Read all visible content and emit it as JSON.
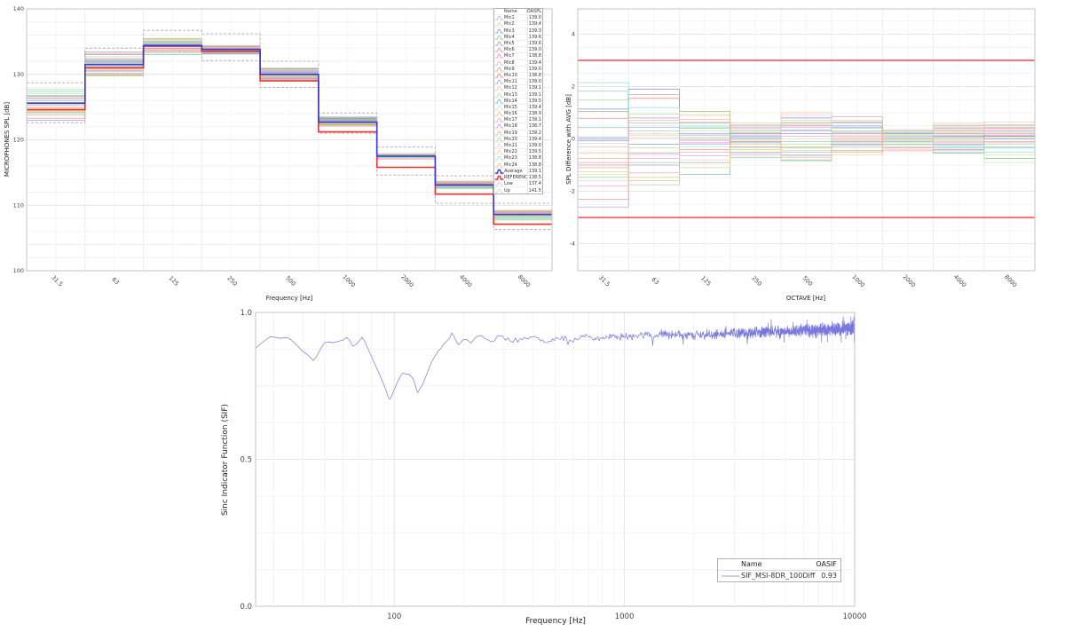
{
  "page": {
    "background": "#ffffff"
  },
  "chart_data": [
    {
      "id": "mic_spl",
      "type": "step",
      "ylabel": "MICROPHONES SPL [dB]",
      "xlabel": "Frequency [Hz]",
      "ylim": [
        100,
        140
      ],
      "yticks": [
        "100",
        "110",
        "120",
        "130",
        "140"
      ],
      "categories": [
        "31.5",
        "63",
        "125",
        "250",
        "500",
        "1000",
        "2000",
        "4000",
        "8000"
      ],
      "legend": {
        "headers": [
          "Name",
          "OASPL"
        ]
      },
      "average": {
        "name": "Average",
        "oaspl": "139.1",
        "color": "#3a3ad0",
        "values": [
          125.6,
          131.5,
          134.4,
          133.8,
          130.0,
          122.7,
          117.5,
          113.1,
          108.6
        ]
      },
      "reference": {
        "name": "REFERENCE",
        "oaspl": "138.5",
        "color": "#e83030",
        "values": [
          124.6,
          131.0,
          134.3,
          133.5,
          129.0,
          121.2,
          115.8,
          111.7,
          107.1
        ]
      },
      "low": {
        "name": "Low",
        "oaspl": "137.4",
        "color": "#b4b4b4",
        "values": [
          122.6,
          129.9,
          133.3,
          132.1,
          128.0,
          121.0,
          114.6,
          110.3,
          106.3
        ]
      },
      "up": {
        "name": "Up",
        "oaspl": "141.5",
        "color": "#b4b4b4",
        "values": [
          128.7,
          134.0,
          136.7,
          136.2,
          132.0,
          124.1,
          118.9,
          114.5,
          110.3
        ]
      },
      "mics": [
        {
          "name": "Mic1",
          "oaspl": "139.0",
          "color": "#aab4e8",
          "diff": [
            0.07,
            0.3,
            -0.2,
            0.1,
            -0.5,
            0.85,
            -0.05,
            0.15,
            0.55
          ]
        },
        {
          "name": "Mic2",
          "oaspl": "139.4",
          "color": "#b8e0b0",
          "diff": [
            -0.18,
            0.95,
            0.3,
            -0.05,
            -0.2,
            0.15,
            -0.15,
            -0.1,
            -0.2
          ]
        },
        {
          "name": "Mic3",
          "oaspl": "139.3",
          "color": "#7c8fdd",
          "diff": [
            1.14,
            1.9,
            0.6,
            0.2,
            0.8,
            0.45,
            0.25,
            -0.4,
            0.2
          ]
        },
        {
          "name": "Mic4",
          "oaspl": "139.6",
          "color": "#7fc97f",
          "diff": [
            1.82,
            0.6,
            0.4,
            -0.5,
            -0.35,
            0.3,
            0.1,
            0.2,
            -0.75
          ]
        },
        {
          "name": "Mic5",
          "oaspl": "139.6",
          "color": "#8899dd",
          "diff": [
            -0.07,
            0.45,
            -0.05,
            0.05,
            0.2,
            -0.2,
            0.15,
            0.05,
            0.15
          ]
        },
        {
          "name": "Mic6",
          "oaspl": "139.0",
          "color": "#e08888",
          "diff": [
            -2.3,
            1.7,
            -0.4,
            -0.1,
            0.5,
            0.65,
            -0.2,
            0.4,
            0.4
          ]
        },
        {
          "name": "Mic7",
          "oaspl": "138.8",
          "color": "#e888c8",
          "diff": [
            -1.0,
            -1.3,
            -0.15,
            -0.6,
            0.45,
            0.25,
            0.2,
            -0.35,
            0.1
          ]
        },
        {
          "name": "Mic8",
          "oaspl": "139.4",
          "color": "#f0aab8",
          "diff": [
            -0.3,
            -0.75,
            -0.5,
            0.4,
            0.1,
            0.05,
            0.35,
            0.25,
            0.35
          ]
        },
        {
          "name": "Mic9",
          "oaspl": "139.0",
          "color": "#aaaaaa",
          "diff": [
            1.05,
            0.8,
            -0.9,
            0.5,
            0.3,
            -0.1,
            0.2,
            0.5,
            0.45
          ]
        },
        {
          "name": "Mic10",
          "oaspl": "138.8",
          "color": "#dd7766",
          "diff": [
            0.79,
            1.55,
            1.05,
            -0.3,
            0.6,
            -0.45,
            -0.35,
            0.1,
            0.1
          ]
        },
        {
          "name": "Mic11",
          "oaspl": "139.0",
          "color": "#8fa3e0",
          "diff": [
            0.0,
            -0.55,
            0.15,
            -0.15,
            0.35,
            0.5,
            0.05,
            -0.2,
            0.0
          ]
        },
        {
          "name": "Mic12",
          "oaspl": "139.1",
          "color": "#f0c090",
          "diff": [
            -0.55,
            0.15,
            0.75,
            0.55,
            1.0,
            -0.6,
            -0.3,
            0.6,
            0.65
          ]
        },
        {
          "name": "Mic13",
          "oaspl": "139.1",
          "color": "#a8d8a0",
          "diff": [
            1.5,
            -1.75,
            1.05,
            0.6,
            -0.65,
            -0.15,
            0.35,
            -0.45,
            0.05
          ]
        },
        {
          "name": "Mic14",
          "oaspl": "139.5",
          "color": "#66b8b8",
          "diff": [
            0.43,
            -0.2,
            -1.35,
            -0.7,
            -0.8,
            0.6,
            0.3,
            -0.55,
            -0.35
          ]
        },
        {
          "name": "Mic15",
          "oaspl": "139.4",
          "color": "#c4e8c4",
          "diff": [
            -1.35,
            0.2,
            -0.3,
            -0.35,
            0.65,
            -0.35,
            -0.25,
            0.0,
            -0.9
          ]
        },
        {
          "name": "Mic16",
          "oaspl": "138.9",
          "color": "#d8c080",
          "diff": [
            -0.75,
            -0.35,
            0.9,
            -0.4,
            0.7,
            0.7,
            0.0,
            0.45,
            0.5
          ]
        },
        {
          "name": "Mic17",
          "oaspl": "139.1",
          "color": "#f09ab8",
          "diff": [
            -0.9,
            0.7,
            -0.65,
            0.15,
            -0.7,
            -0.05,
            -0.45,
            -0.15,
            -0.1
          ]
        },
        {
          "name": "Mic18",
          "oaspl": "138.7",
          "color": "#b89ad8",
          "diff": [
            -2.6,
            -1.0,
            0.2,
            0.45,
            -0.6,
            0.2,
            -0.1,
            0.35,
            0.3
          ]
        },
        {
          "name": "Mic19",
          "oaspl": "139.2",
          "color": "#c0c070",
          "diff": [
            -1.1,
            -1.6,
            0.05,
            0.25,
            -0.3,
            -0.5,
            -0.1,
            0.3,
            0.25
          ]
        },
        {
          "name": "Mic20",
          "oaspl": "139.4",
          "color": "#98d898",
          "diff": [
            -1.45,
            -0.9,
            0.45,
            0.0,
            -0.1,
            0.4,
            0.15,
            -0.25,
            -0.3
          ]
        },
        {
          "name": "Mic21",
          "oaspl": "139.0",
          "color": "#f0c8d8",
          "diff": [
            -1.6,
            0.05,
            -0.8,
            -0.55,
            0.9,
            0.0,
            -0.4,
            0.55,
            0.2
          ]
        },
        {
          "name": "Mic22",
          "oaspl": "139.5",
          "color": "#d8d888",
          "diff": [
            -1.25,
            -1.45,
            -1.1,
            -0.2,
            -0.85,
            0.1,
            0.1,
            -0.5,
            -0.6
          ]
        },
        {
          "name": "Mic23",
          "oaspl": "138.8",
          "color": "#88e0e0",
          "diff": [
            2.15,
            1.2,
            0.5,
            0.3,
            0.55,
            -0.3,
            -0.2,
            -0.3,
            -0.5
          ]
        },
        {
          "name": "Mic24",
          "oaspl": "138.8",
          "color": "#f0b0a0",
          "diff": [
            -1.8,
            -0.6,
            0.65,
            0.35,
            -0.45,
            -0.25,
            0.3,
            -0.05,
            -0.15
          ]
        }
      ]
    },
    {
      "id": "spl_diff",
      "type": "step",
      "ylabel": "SPL Difference with AVG [dB]",
      "xlabel": "OCTAVE [Hz]",
      "ylim": [
        -5.05,
        4.95
      ],
      "yticks": [
        "-4",
        "-2",
        "0",
        "2",
        "4"
      ],
      "categories": [
        "31.5",
        "63",
        "125",
        "250",
        "500",
        "1000",
        "2000",
        "4000",
        "8000"
      ],
      "series_source": "mic diff relative to Average (from mic_spl chart)",
      "limits": {
        "upper": 3,
        "lower": -3,
        "color": "#f04848"
      }
    },
    {
      "id": "sif",
      "type": "line",
      "xscale": "log",
      "ylabel": "Sinc Indicator Function (SIF)",
      "xlabel": "Frequency [Hz]",
      "ylim": [
        0,
        1
      ],
      "yticks": [
        "0.0",
        "0.5",
        "1.0"
      ],
      "xticks": [
        "100",
        "1000",
        "10000"
      ],
      "xlim": [
        25,
        10000
      ],
      "legend": {
        "headers": [
          "Name",
          "OASIF"
        ]
      },
      "series": [
        {
          "name": "SIF_MSI-8DR_100Diff",
          "oasif": "0.93",
          "color": "#7878dd",
          "noise": {
            "from_hz": 200,
            "base": 0.006,
            "slope": 0.022
          },
          "points": [
            [
              25,
              0.878
            ],
            [
              26,
              0.89
            ],
            [
              27.5,
              0.905
            ],
            [
              29,
              0.918
            ],
            [
              30.5,
              0.915
            ],
            [
              32,
              0.912
            ],
            [
              34,
              0.915
            ],
            [
              35.5,
              0.908
            ],
            [
              37,
              0.895
            ],
            [
              38.5,
              0.882
            ],
            [
              40,
              0.868
            ],
            [
              42,
              0.856
            ],
            [
              44.5,
              0.837
            ],
            [
              46,
              0.85
            ],
            [
              48,
              0.878
            ],
            [
              50,
              0.898
            ],
            [
              52,
              0.9
            ],
            [
              54,
              0.897
            ],
            [
              56,
              0.9
            ],
            [
              58,
              0.903
            ],
            [
              60,
              0.906
            ],
            [
              62,
              0.915
            ],
            [
              64,
              0.905
            ],
            [
              66,
              0.885
            ],
            [
              68,
              0.89
            ],
            [
              70,
              0.9
            ],
            [
              72.5,
              0.916
            ],
            [
              74,
              0.905
            ],
            [
              76,
              0.885
            ],
            [
              78,
              0.866
            ],
            [
              80,
              0.846
            ],
            [
              82,
              0.828
            ],
            [
              84,
              0.81
            ],
            [
              86,
              0.792
            ],
            [
              88,
              0.774
            ],
            [
              90,
              0.756
            ],
            [
              92,
              0.736
            ],
            [
              94,
              0.714
            ],
            [
              95.5,
              0.704
            ],
            [
              97,
              0.712
            ],
            [
              99,
              0.728
            ],
            [
              101,
              0.744
            ],
            [
              103,
              0.76
            ],
            [
              105,
              0.774
            ],
            [
              107,
              0.786
            ],
            [
              109,
              0.794
            ],
            [
              111,
              0.792
            ],
            [
              113,
              0.79
            ],
            [
              115,
              0.79
            ],
            [
              117,
              0.787
            ],
            [
              119,
              0.78
            ],
            [
              121,
              0.773
            ],
            [
              123,
              0.757
            ],
            [
              125,
              0.737
            ],
            [
              126.5,
              0.727
            ],
            [
              128,
              0.734
            ],
            [
              130,
              0.744
            ],
            [
              132,
              0.75
            ],
            [
              134,
              0.762
            ],
            [
              136,
              0.775
            ],
            [
              139,
              0.793
            ],
            [
              142,
              0.812
            ],
            [
              146,
              0.834
            ],
            [
              150,
              0.85
            ],
            [
              155,
              0.868
            ],
            [
              160,
              0.879
            ],
            [
              164,
              0.892
            ],
            [
              168,
              0.9
            ],
            [
              172,
              0.908
            ],
            [
              175,
              0.916
            ],
            [
              178,
              0.93
            ],
            [
              181,
              0.921
            ],
            [
              184,
              0.91
            ],
            [
              187,
              0.899
            ],
            [
              190,
              0.89
            ],
            [
              194,
              0.896
            ],
            [
              198,
              0.905
            ],
            [
              203,
              0.913
            ],
            [
              209,
              0.905
            ],
            [
              215,
              0.896
            ],
            [
              222,
              0.906
            ],
            [
              229,
              0.92
            ],
            [
              237,
              0.924
            ],
            [
              246,
              0.916
            ],
            [
              256,
              0.904
            ],
            [
              266,
              0.9
            ],
            [
              277,
              0.91
            ],
            [
              288,
              0.92
            ],
            [
              300,
              0.914
            ],
            [
              315,
              0.905
            ],
            [
              330,
              0.897
            ],
            [
              350,
              0.903
            ],
            [
              370,
              0.912
            ],
            [
              395,
              0.921
            ],
            [
              420,
              0.913
            ],
            [
              450,
              0.897
            ],
            [
              480,
              0.906
            ],
            [
              510,
              0.918
            ],
            [
              545,
              0.912
            ],
            [
              585,
              0.905
            ],
            [
              630,
              0.912
            ],
            [
              680,
              0.921
            ],
            [
              730,
              0.914
            ],
            [
              790,
              0.908
            ],
            [
              850,
              0.917
            ],
            [
              920,
              0.922
            ],
            [
              1000,
              0.916
            ],
            [
              1100,
              0.919
            ],
            [
              1200,
              0.923
            ],
            [
              1350,
              0.917
            ],
            [
              1500,
              0.922
            ],
            [
              1700,
              0.925
            ],
            [
              1900,
              0.921
            ],
            [
              2150,
              0.927
            ],
            [
              2400,
              0.924
            ],
            [
              2700,
              0.929
            ],
            [
              3000,
              0.932
            ],
            [
              3400,
              0.928
            ],
            [
              3800,
              0.933
            ],
            [
              4300,
              0.936
            ],
            [
              4800,
              0.932
            ],
            [
              5400,
              0.937
            ],
            [
              6000,
              0.94
            ],
            [
              6700,
              0.937
            ],
            [
              7500,
              0.942
            ],
            [
              8400,
              0.944
            ],
            [
              9300,
              0.946
            ],
            [
              9900,
              0.95
            ],
            [
              10000,
              0.9
            ]
          ]
        }
      ]
    }
  ]
}
